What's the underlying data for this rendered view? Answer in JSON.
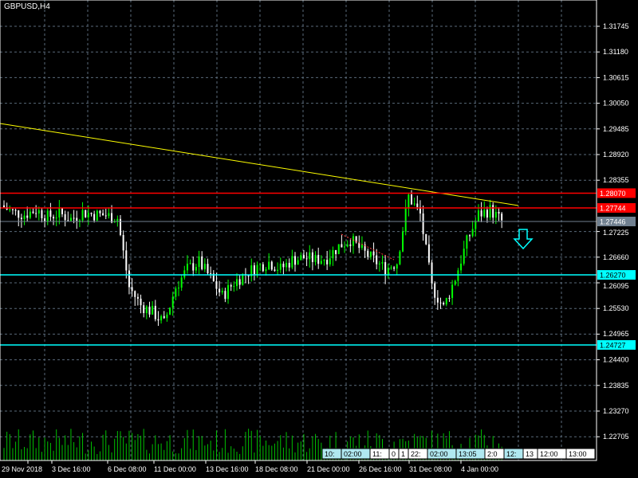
{
  "symbol_title": "GBPUSD,H4",
  "colors": {
    "bull": "#00ff00",
    "bear": "#ffffff",
    "grid": "#5a6a7a",
    "resistance": "#ff0000",
    "support": "#00ffff",
    "trend": "#ffff00",
    "price": "#708090"
  },
  "price_axis": [
    "1.31745",
    "1.31180",
    "1.30615",
    "1.30050",
    "1.29485",
    "1.28920",
    "1.28355",
    "1.27225",
    "1.26660",
    "1.26095",
    "1.25530",
    "1.24965",
    "1.24400",
    "1.23835",
    "1.23270",
    "1.22705"
  ],
  "levels": [
    {
      "label": "1.28070",
      "type": "resistance"
    },
    {
      "label": "1.27744",
      "type": "resistance"
    },
    {
      "label": "1.27446",
      "type": "price"
    },
    {
      "label": "1.26270",
      "type": "support"
    },
    {
      "label": "1.24727",
      "type": "support"
    }
  ],
  "time_axis": [
    "29 Nov 2018",
    "3 Dec 16:00",
    "6 Dec 08:00",
    "11 Dec 00:00",
    "13 Dec 16:00",
    "18 Dec 08:00",
    "21 Dec 00:00",
    "26 Dec 16:00",
    "31 Dec 08:00",
    "4 Jan 00:00"
  ],
  "time_tags": [
    "10:",
    "02:00",
    "11:",
    "0",
    "1",
    "22:",
    "02:00",
    "13:05",
    "2:0",
    "12:",
    "13",
    "12:00",
    "13:00"
  ],
  "chart_data": {
    "type": "candlestick",
    "symbol": "GBPUSD",
    "timeframe": "H4",
    "ylim": [
      1.2242,
      1.3202
    ],
    "closes": [
      1.278,
      1.2765,
      1.276,
      1.277,
      1.2755,
      1.2762,
      1.275,
      1.2765,
      1.276,
      1.2758,
      1.2752,
      1.26,
      1.256,
      1.2545,
      1.252,
      1.26,
      1.264,
      1.2655,
      1.262,
      1.258,
      1.261,
      1.263,
      1.2645,
      1.2655,
      1.264,
      1.266,
      1.2665,
      1.266,
      1.2665,
      1.269,
      1.2705,
      1.268,
      1.266,
      1.264,
      1.2655,
      1.28,
      1.276,
      1.26,
      1.2555,
      1.262,
      1.27,
      1.276,
      1.277,
      1.2745
    ]
  }
}
